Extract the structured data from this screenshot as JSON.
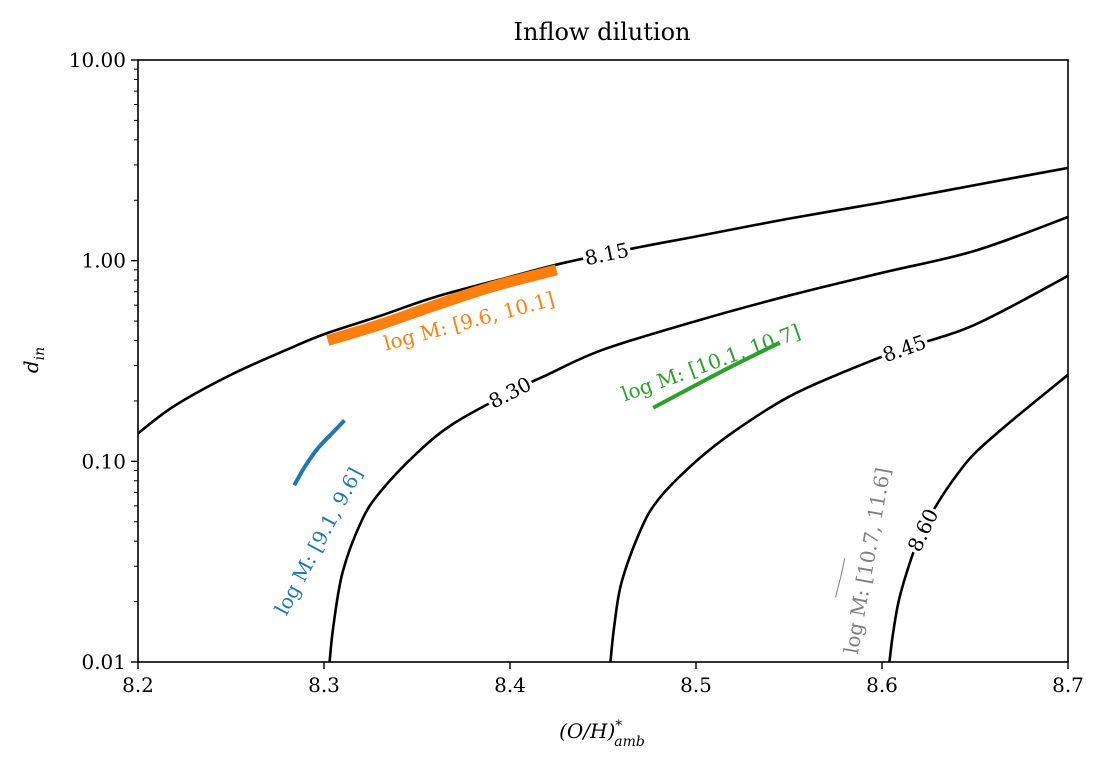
{
  "chart_data": {
    "type": "line",
    "title": "Inflow dilution",
    "xlabel": "(O/H)*amb",
    "xlabel_main": "(O/H)",
    "xlabel_sup": "*",
    "xlabel_sub": "amb",
    "ylabel": "d_in",
    "ylabel_main": "d",
    "ylabel_sub": "in",
    "xlim": [
      8.2,
      8.7
    ],
    "ylim": [
      0.01,
      10.0
    ],
    "yscale": "log",
    "grid": false,
    "xticks": [
      {
        "value": 8.2,
        "label": "8.2"
      },
      {
        "value": 8.3,
        "label": "8.3"
      },
      {
        "value": 8.4,
        "label": "8.4"
      },
      {
        "value": 8.5,
        "label": "8.5"
      },
      {
        "value": 8.6,
        "label": "8.6"
      },
      {
        "value": 8.7,
        "label": "8.7"
      }
    ],
    "yticks": [
      {
        "value": 0.01,
        "label": "0.01"
      },
      {
        "value": 0.1,
        "label": "0.10"
      },
      {
        "value": 1.0,
        "label": "1.00"
      },
      {
        "value": 10.0,
        "label": "10.00"
      }
    ],
    "contours": [
      {
        "level_label": "8.15",
        "color": "#000000",
        "points": [
          [
            8.2,
            0.138
          ],
          [
            8.22,
            0.19
          ],
          [
            8.25,
            0.27
          ],
          [
            8.28,
            0.36
          ],
          [
            8.3,
            0.43
          ],
          [
            8.33,
            0.53
          ],
          [
            8.36,
            0.66
          ],
          [
            8.4,
            0.83
          ],
          [
            8.43,
            0.98
          ],
          [
            8.47,
            1.17
          ],
          [
            8.5,
            1.32
          ],
          [
            8.55,
            1.62
          ],
          [
            8.6,
            1.95
          ],
          [
            8.65,
            2.38
          ],
          [
            8.7,
            2.9
          ]
        ],
        "label_x": 8.452
      },
      {
        "level_label": "8.30",
        "color": "#000000",
        "points": [
          [
            8.303,
            0.01
          ],
          [
            8.305,
            0.015
          ],
          [
            8.31,
            0.028
          ],
          [
            8.32,
            0.05
          ],
          [
            8.33,
            0.07
          ],
          [
            8.35,
            0.11
          ],
          [
            8.37,
            0.155
          ],
          [
            8.4,
            0.22
          ],
          [
            8.42,
            0.27
          ],
          [
            8.45,
            0.36
          ],
          [
            8.5,
            0.5
          ],
          [
            8.55,
            0.67
          ],
          [
            8.6,
            0.87
          ],
          [
            8.65,
            1.12
          ],
          [
            8.7,
            1.65
          ]
        ],
        "label_x": 8.4
      },
      {
        "level_label": "8.45",
        "color": "#000000",
        "points": [
          [
            8.454,
            0.01
          ],
          [
            8.456,
            0.015
          ],
          [
            8.46,
            0.025
          ],
          [
            8.47,
            0.045
          ],
          [
            8.48,
            0.065
          ],
          [
            8.5,
            0.1
          ],
          [
            8.52,
            0.14
          ],
          [
            8.55,
            0.21
          ],
          [
            8.58,
            0.28
          ],
          [
            8.61,
            0.36
          ],
          [
            8.65,
            0.48
          ],
          [
            8.7,
            0.84
          ]
        ],
        "label_x": 8.612
      },
      {
        "level_label": "8.60",
        "color": "#000000",
        "points": [
          [
            8.604,
            0.01
          ],
          [
            8.606,
            0.014
          ],
          [
            8.61,
            0.022
          ],
          [
            8.62,
            0.042
          ],
          [
            8.63,
            0.062
          ],
          [
            8.64,
            0.085
          ],
          [
            8.65,
            0.11
          ],
          [
            8.67,
            0.16
          ],
          [
            8.7,
            0.27
          ]
        ],
        "label_x": 8.622
      }
    ],
    "series": [
      {
        "name": "log M: [9.1, 9.6]",
        "color": "#1f77b4",
        "linewidth": 4,
        "points": [
          [
            8.284,
            0.076
          ],
          [
            8.29,
            0.095
          ],
          [
            8.297,
            0.117
          ],
          [
            8.305,
            0.14
          ],
          [
            8.311,
            0.16
          ]
        ],
        "label_x": 8.297,
        "label_y": 0.04,
        "label_angle": -62
      },
      {
        "name": "log M: [9.6, 10.1]",
        "color": "#ff7f0e",
        "linewidth": 11,
        "points": [
          [
            8.302,
            0.4
          ],
          [
            8.33,
            0.48
          ],
          [
            8.36,
            0.6
          ],
          [
            8.39,
            0.74
          ],
          [
            8.425,
            0.9
          ]
        ],
        "label_x": 8.378,
        "label_y": 0.5,
        "label_angle": -15
      },
      {
        "name": "log M: [10.1, 10.7]",
        "color": "#2ca02c",
        "linewidth": 4,
        "points": [
          [
            8.477,
            0.185
          ],
          [
            8.5,
            0.24
          ],
          [
            8.52,
            0.3
          ],
          [
            8.545,
            0.39
          ]
        ],
        "label_x": 8.508,
        "label_y": 0.31,
        "label_angle": -20
      },
      {
        "name": "log M: [10.7, 11.6]",
        "color": "#7f7f7f",
        "linewidth": 1,
        "points": [
          [
            8.575,
            0.021
          ],
          [
            8.578,
            0.027
          ],
          [
            8.58,
            0.033
          ]
        ],
        "label_x": 8.592,
        "label_y": 0.032,
        "label_angle": -80
      }
    ]
  }
}
